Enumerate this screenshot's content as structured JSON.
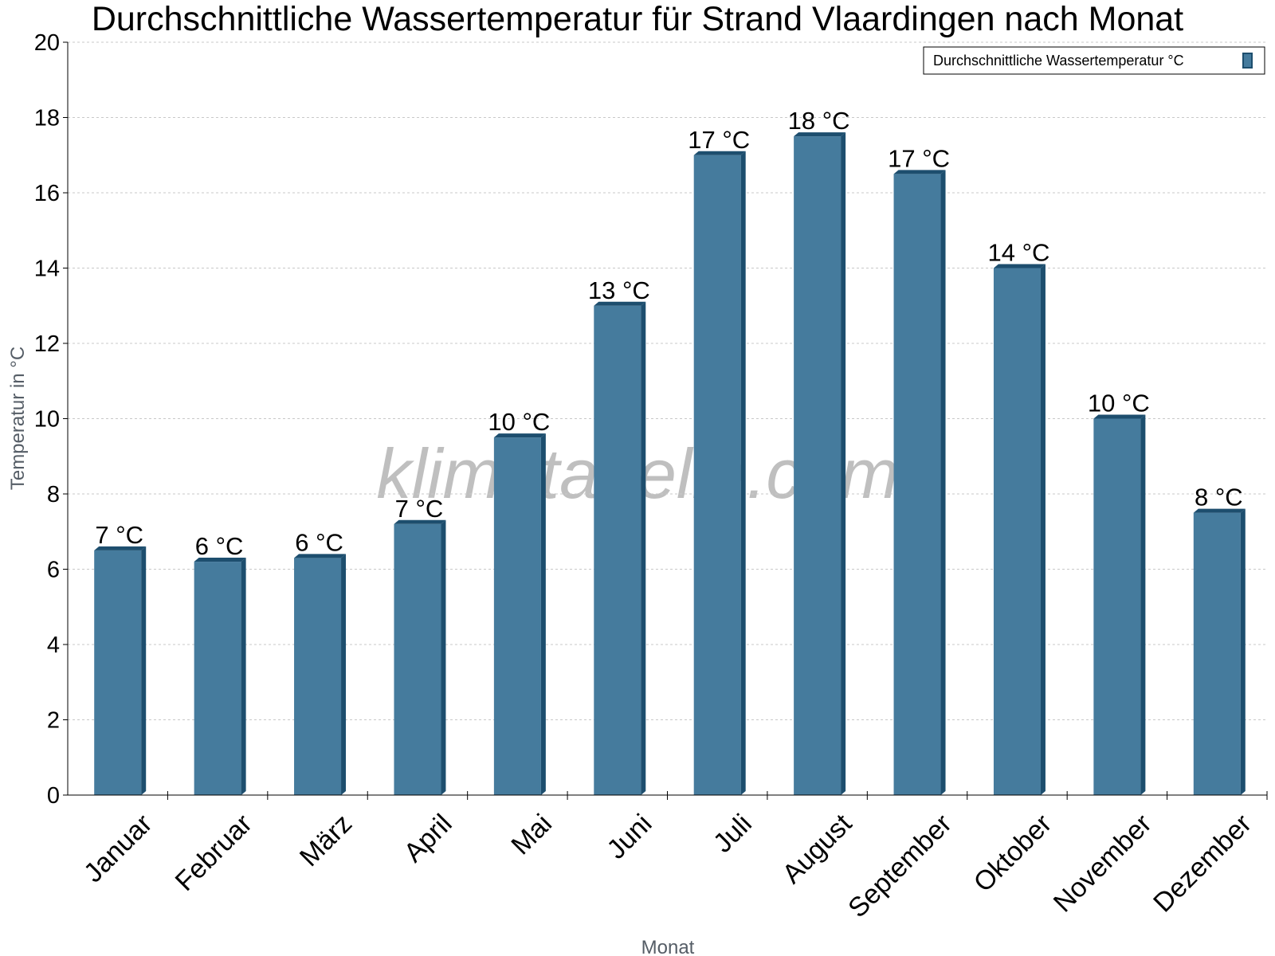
{
  "chart_data": {
    "type": "bar",
    "title": "Durchschnittliche Wassertemperatur für Strand Vlaardingen nach Monat",
    "xlabel": "Monat",
    "ylabel": "Temperatur in °C",
    "categories": [
      "Januar",
      "Februar",
      "März",
      "April",
      "Mai",
      "Juni",
      "Juli",
      "August",
      "September",
      "Oktober",
      "November",
      "Dezember"
    ],
    "series": [
      {
        "name": "Durchschnittliche Wassertemperatur °C",
        "values": [
          6.5,
          6.2,
          6.3,
          7.2,
          9.5,
          13.0,
          17.0,
          17.5,
          16.5,
          14.0,
          10.0,
          7.5
        ],
        "labels": [
          "7 °C",
          "6 °C",
          "6 °C",
          "7 °C",
          "10 °C",
          "13 °C",
          "17 °C",
          "18 °C",
          "17 °C",
          "14 °C",
          "10 °C",
          "8 °C"
        ]
      }
    ],
    "ylim": [
      0,
      20
    ],
    "yticks": [
      0,
      2,
      4,
      6,
      8,
      10,
      12,
      14,
      16,
      18,
      20
    ],
    "grid": true,
    "legend_position": "top-right",
    "bar_color": "#457b9d",
    "bar_side_color": "#1d4e6e",
    "watermark": "klimatabelle.com"
  }
}
